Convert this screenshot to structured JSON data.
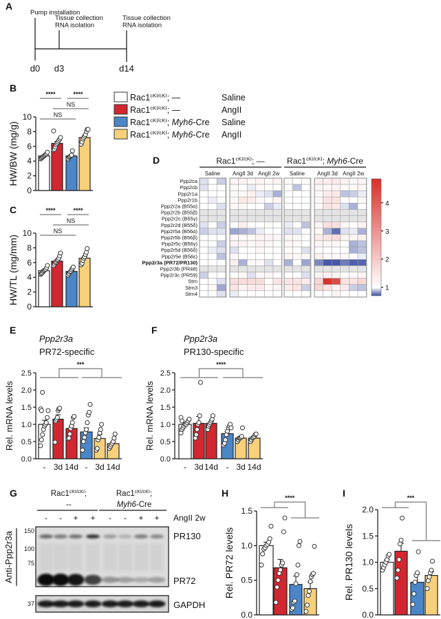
{
  "panel_labels": {
    "A": "A",
    "B": "B",
    "C": "C",
    "D": "D",
    "E": "E",
    "F": "F",
    "G": "G",
    "H": "H",
    "I": "I"
  },
  "timeline": {
    "events": [
      {
        "day": "d0",
        "lines": [
          "Pump installation"
        ]
      },
      {
        "day": "d3",
        "lines": [
          "Tissue collection",
          "RNA isolation"
        ]
      },
      {
        "day": "d14",
        "lines": [
          "Tissue collection",
          "RNA isolation"
        ]
      }
    ]
  },
  "legend": [
    {
      "gene": "Rac1",
      "sup": "cKI/cKI",
      "sep": "; ",
      "driver": "—",
      "driver_italic": "",
      "driver_suffix": "",
      "treatment": "Saline",
      "color": "#ffffff"
    },
    {
      "gene": "Rac1",
      "sup": "cKI/cKI",
      "sep": "; ",
      "driver": "—",
      "driver_italic": "",
      "driver_suffix": "",
      "treatment": "AngII",
      "color": "#d22630"
    },
    {
      "gene": "Rac1",
      "sup": "cKI/cKI",
      "sep": "; ",
      "driver": "",
      "driver_italic": "Myh6",
      "driver_suffix": "-Cre",
      "treatment": "Saline",
      "color": "#4a86c8"
    },
    {
      "gene": "Rac1",
      "sup": "cKI/cKI",
      "sep": "; ",
      "driver": "",
      "driver_italic": "Myh6",
      "driver_suffix": "-Cre",
      "treatment": "AngII",
      "color": "#f6d07a"
    }
  ],
  "chart_data": [
    {
      "panel": "B",
      "type": "bar",
      "ylabel": "HW/BW (mg/g)",
      "ylim": [
        0,
        10
      ],
      "yticks": [
        "0",
        "2",
        "4",
        "6",
        "8",
        "10"
      ],
      "colors": [
        "#ffffff",
        "#d22630",
        "#4a86c8",
        "#f6d07a"
      ],
      "values": [
        4.7,
        6.4,
        4.7,
        7.2
      ],
      "sem": [
        0.1,
        0.25,
        0.15,
        0.25
      ],
      "points": [
        [
          4.3,
          4.4,
          4.5,
          4.6,
          4.7,
          4.8,
          4.9,
          5.0,
          5.2
        ],
        [
          5.5,
          5.6,
          5.9,
          6.2,
          6.4,
          6.6,
          6.8,
          7.0,
          7.2,
          8.1
        ],
        [
          4.3,
          4.5,
          4.6,
          4.7,
          4.8,
          5.4
        ],
        [
          6.3,
          6.6,
          7.0,
          7.2,
          7.4,
          7.6,
          8.0,
          8.3,
          8.3
        ]
      ],
      "significance": [
        {
          "from": 0,
          "to": 1,
          "label": "****",
          "level": 2
        },
        {
          "from": 2,
          "to": 3,
          "label": "****",
          "level": 2
        },
        {
          "from": 1,
          "to": 3,
          "label": "NS",
          "level": 1
        },
        {
          "from": 0,
          "to": 2,
          "label": "NS",
          "level": 0
        }
      ]
    },
    {
      "panel": "C",
      "type": "bar",
      "ylabel": "HW/TL (mg/mm)",
      "ylim": [
        0,
        10
      ],
      "yticks": [
        "0",
        "2",
        "4",
        "6",
        "8",
        "10"
      ],
      "colors": [
        "#ffffff",
        "#d22630",
        "#4a86c8",
        "#f6d07a"
      ],
      "values": [
        4.9,
        6.2,
        4.8,
        6.6
      ],
      "sem": [
        0.12,
        0.15,
        0.13,
        0.25
      ],
      "points": [
        [
          4.4,
          4.5,
          4.6,
          4.8,
          4.9,
          5.0,
          5.1,
          5.3,
          5.6
        ],
        [
          5.6,
          5.8,
          6.0,
          6.1,
          6.3,
          6.4,
          6.6,
          6.9,
          7.3
        ],
        [
          4.3,
          4.5,
          4.7,
          4.8,
          5.0,
          5.2,
          5.4
        ],
        [
          5.7,
          5.9,
          6.3,
          6.6,
          6.8,
          7.1,
          7.4,
          7.9
        ]
      ],
      "significance": [
        {
          "from": 0,
          "to": 1,
          "label": "****",
          "level": 2
        },
        {
          "from": 2,
          "to": 3,
          "label": "****",
          "level": 2
        },
        {
          "from": 1,
          "to": 3,
          "label": "NS",
          "level": 1
        },
        {
          "from": 0,
          "to": 2,
          "label": "NS",
          "level": 0
        }
      ]
    },
    {
      "panel": "D",
      "type": "heatmap",
      "genotypes": [
        {
          "gene": "Rac1",
          "sup": "cKI/cKI",
          "sep": "; ",
          "driver": "—",
          "driver_italic": "",
          "driver_suffix": ""
        },
        {
          "gene": "Rac1",
          "sup": "cKI/cKI",
          "sep": "; ",
          "driver": "",
          "driver_italic": "Myh6",
          "driver_suffix": "-Cre"
        }
      ],
      "column_groups": [
        "Saline",
        "AngII 3d",
        "AngII 2w",
        "Saline",
        "AngII 3d",
        "AngII 2w"
      ],
      "replicates_per_group": 3,
      "rows": [
        {
          "label": "Ppp2ca",
          "values": [
            0.95,
            1,
            0.92,
            1.1,
            1.1,
            1.05,
            1.1,
            1.05,
            1.1,
            1.05,
            1,
            1,
            1.15,
            1.15,
            1.2,
            1.1,
            1.05,
            1.1
          ]
        },
        {
          "label": "Ppp2cb",
          "values": [
            0.95,
            1,
            1,
            1.05,
            1,
            0.97,
            1.05,
            1,
            1,
            1,
            0.9,
            1,
            1.1,
            1.05,
            1.1,
            1.05,
            1.05,
            1.1
          ]
        },
        {
          "label": "Ppp2r1a",
          "values": [
            1,
            1,
            1,
            1.05,
            1.05,
            1.15,
            0.97,
            0.95,
            0.87,
            1,
            1,
            1,
            1.05,
            1.2,
            1.25,
            0.9,
            0.92,
            0.97
          ]
        },
        {
          "label": "Ppp2r1b",
          "values": [
            1,
            0.97,
            1,
            1.05,
            1.25,
            1.2,
            1.05,
            1,
            1.1,
            1,
            1,
            1,
            1.05,
            1.3,
            1.3,
            1,
            1,
            1.05
          ]
        },
        {
          "label": "Ppp2r2a (B55α)",
          "values": [
            1,
            1,
            0.95,
            1.05,
            1.05,
            1,
            1,
            0.92,
            0.97,
            1,
            1,
            1,
            1.05,
            1.3,
            1.25,
            0.95,
            0.87,
            1
          ]
        },
        {
          "label": "Ppp2r2b (B55β)",
          "values": null
        },
        {
          "label": "Ppp2r2c (B55γ)",
          "values": null
        },
        {
          "label": "Ppp2r2d (B55δ)",
          "values": [
            0.95,
            1,
            0.92,
            1,
            1.15,
            1,
            1,
            1.05,
            1,
            0.97,
            1,
            0.9,
            1.1,
            1.4,
            1.35,
            1.05,
            1,
            1.1
          ]
        },
        {
          "label": "Ppp2r5a (B56α)",
          "values": [
            0.92,
            0.95,
            0.95,
            0.85,
            0.87,
            0.9,
            0.97,
            1,
            1,
            0.95,
            0.95,
            1,
            1.05,
            0.87,
            0.76,
            0.95,
            0.97,
            0.87
          ]
        },
        {
          "label": "Ppp2r5b (B56β)",
          "values": [
            1,
            1,
            1,
            1.05,
            1.05,
            1.05,
            1.1,
            1.1,
            1.05,
            1.1,
            1.05,
            1,
            1.2,
            1.3,
            1.4,
            1.1,
            1.1,
            1.15
          ]
        },
        {
          "label": "Ppp2r5c (B56γ)",
          "values": [
            1,
            1,
            0.92,
            1.1,
            1.1,
            1.05,
            1.1,
            1.05,
            1,
            1.05,
            1.05,
            1,
            1.1,
            1.1,
            1.05,
            1,
            0.87,
            0.9
          ]
        },
        {
          "label": "Ppp2r5d (B56δ)",
          "values": [
            1,
            0.97,
            0.95,
            0.95,
            1,
            1,
            1.05,
            1,
            1,
            1,
            1,
            0.95,
            1,
            1,
            1,
            1,
            0.87,
            0.9
          ]
        },
        {
          "label": "Ppp2r5e (B56ε)",
          "values": [
            1,
            1,
            0.9,
            1.05,
            1,
            1,
            1,
            1,
            1,
            1.1,
            1.05,
            1.05,
            1.15,
            1.05,
            1.05,
            1.05,
            1,
            0.97
          ]
        },
        {
          "label": "Ppp2r3a (PR72/PR130)",
          "bold": true,
          "values": [
            1,
            1,
            1,
            1.15,
            0.87,
            1.05,
            1.05,
            0.95,
            1,
            0.87,
            1,
            0.85,
            0.8,
            0.72,
            0.72,
            0.78,
            0.73,
            0.74
          ]
        },
        {
          "label": "Ppp2r3b (PR48)",
          "values": null
        },
        {
          "label": "Ppp2r3c (PR59)",
          "values": [
            0.92,
            1,
            1,
            1,
            1.05,
            0.95,
            1.05,
            1.1,
            1,
            1,
            1,
            0.95,
            1.1,
            1.15,
            1.1,
            1,
            1.05,
            1.1
          ]
        },
        {
          "label": "Strn",
          "values": [
            1,
            1,
            0.95,
            1.4,
            1.4,
            1.4,
            1.4,
            1,
            1.3,
            1.3,
            1.3,
            1.2,
            1.5,
            4.8,
            4.2,
            1.3,
            1.3,
            1.5
          ]
        },
        {
          "label": "Strn3",
          "values": [
            1,
            1.05,
            0.85,
            1.3,
            1.1,
            1.2,
            1.2,
            1.05,
            1.1,
            1.2,
            1.3,
            0.92,
            1.5,
            1.3,
            1.1,
            1.2,
            0.92,
            0.9
          ]
        },
        {
          "label": "Strn4",
          "values": [
            1,
            1,
            0.95,
            0.97,
            1,
            1,
            1,
            1,
            1,
            1,
            1,
            1,
            1,
            1,
            1.1,
            1,
            1,
            1
          ]
        }
      ],
      "colorbar": {
        "range": [
          0.7,
          4.85
        ],
        "ticks": [
          "1",
          "2",
          "3",
          "4"
        ],
        "low_color": "#3a4ca0",
        "mid_color": "#ffffff",
        "high_color": "#d7302a",
        "missing_color": "#e4e4e4"
      }
    },
    {
      "panel": "E",
      "type": "bar",
      "title": [
        "Ppp2r3a",
        "PR72-specific"
      ],
      "ylabel": "Rel. mRNA levels",
      "ylim": [
        0,
        2.5
      ],
      "yticks": [
        "0.0",
        "0.5",
        "1.0",
        "1.5",
        "2.0",
        "2.5"
      ],
      "xticklabels": [
        "-",
        "3d",
        "14d",
        "-",
        "3d",
        "14d"
      ],
      "colors": [
        "#ffffff",
        "#d22630",
        "#d22630",
        "#4a86c8",
        "#f6d07a",
        "#f6d07a"
      ],
      "values": [
        1.0,
        1.15,
        0.88,
        0.78,
        0.59,
        0.44
      ],
      "sem": [
        0.12,
        0.13,
        0.08,
        0.12,
        0.11,
        0.05
      ],
      "points": [
        [
          0.38,
          0.55,
          0.7,
          0.85,
          0.95,
          1.0,
          1.05,
          1.2,
          1.4,
          1.45,
          1.4,
          1.93
        ],
        [
          0.48,
          1.1,
          1.15,
          1.2,
          1.4,
          1.45,
          1.47
        ],
        [
          0.58,
          0.6,
          0.72,
          0.88,
          0.95,
          1.05,
          1.2,
          1.23
        ],
        [
          0.25,
          0.5,
          0.62,
          0.75,
          0.85,
          1.05,
          1.27,
          1.35,
          1.58
        ],
        [
          0.25,
          0.3,
          0.55,
          0.62,
          0.75,
          0.85,
          1.0
        ],
        [
          0.3,
          0.35,
          0.4,
          0.45,
          0.5,
          0.6,
          0.72
        ]
      ],
      "significance": [
        {
          "left": [
            0,
            1,
            2
          ],
          "right": [
            3,
            4,
            5
          ],
          "label": "***"
        }
      ]
    },
    {
      "panel": "F",
      "type": "bar",
      "title": [
        "Ppp2r3a",
        "PR130-specific"
      ],
      "ylabel": "Rel. mRNA levels",
      "ylim": [
        0,
        2.5
      ],
      "yticks": [
        "0.0",
        "0.5",
        "1.0",
        "1.5",
        "2.0",
        "2.5"
      ],
      "xticklabels": [
        "-",
        "3d",
        "14d",
        "-",
        "3d",
        "14d"
      ],
      "colors": [
        "#ffffff",
        "#d22630",
        "#d22630",
        "#4a86c8",
        "#f6d07a",
        "#f6d07a"
      ],
      "values": [
        1.0,
        1.03,
        1.03,
        0.73,
        0.6,
        0.6
      ],
      "sem": [
        0.04,
        0.2,
        0.05,
        0.07,
        0.04,
        0.03
      ],
      "points": [
        [
          0.75,
          0.85,
          0.9,
          0.95,
          1.0,
          1.0,
          1.05,
          1.1,
          1.15,
          1.2,
          1.1
        ],
        [
          0.6,
          0.7,
          0.85,
          1.0,
          1.05,
          1.25,
          2.22
        ],
        [
          0.85,
          0.95,
          1.0,
          1.05,
          1.1,
          1.15,
          1.25
        ],
        [
          0.4,
          0.45,
          0.55,
          0.7,
          0.8,
          0.9,
          0.95,
          1.0,
          0.9
        ],
        [
          0.5,
          0.55,
          0.6,
          0.6,
          0.62,
          0.65,
          0.9
        ],
        [
          0.5,
          0.55,
          0.6,
          0.62,
          0.65,
          0.7,
          0.72
        ]
      ],
      "significance": [
        {
          "left": [
            0,
            1,
            2
          ],
          "right": [
            3,
            4,
            5
          ],
          "label": "****"
        }
      ]
    },
    {
      "panel": "H",
      "type": "bar",
      "ylabel": "Rel. PR72 levels",
      "ylim": [
        0,
        1.5
      ],
      "yticks": [
        "0.0",
        "0.5",
        "1.0",
        "1.5"
      ],
      "colors": [
        "#ffffff",
        "#d22630",
        "#4a86c8",
        "#f6d07a"
      ],
      "values": [
        1.0,
        0.68,
        0.44,
        0.38
      ],
      "sem": [
        0.05,
        0.12,
        0.12,
        0.09
      ],
      "points": [
        [
          0.72,
          0.88,
          0.95,
          0.97,
          1.0,
          1.02,
          1.05,
          1.1,
          1.28
        ],
        [
          0.18,
          0.4,
          0.5,
          0.6,
          0.65,
          0.72,
          0.75,
          1.2,
          1.4
        ],
        [
          0.08,
          0.1,
          0.18,
          0.2,
          0.45,
          0.58,
          0.72,
          1.0,
          1.06
        ],
        [
          0.05,
          0.14,
          0.28,
          0.34,
          0.48,
          0.55,
          0.58,
          0.6,
          0.99
        ]
      ],
      "significance": [
        {
          "left": [
            0,
            1
          ],
          "right": [
            2,
            3
          ],
          "label": "****"
        }
      ]
    },
    {
      "panel": "I",
      "type": "bar",
      "ylabel": "Rel. PR130 levels",
      "ylim": [
        0,
        2.0
      ],
      "yticks": [
        "0.0",
        "0.5",
        "1.0",
        "1.5",
        "2.0"
      ],
      "colors": [
        "#ffffff",
        "#d22630",
        "#4a86c8",
        "#f6d07a"
      ],
      "values": [
        1.0,
        1.21,
        0.62,
        0.75
      ],
      "sem": [
        0.05,
        0.15,
        0.15,
        0.07
      ],
      "points": [
        [
          0.85,
          0.9,
          0.95,
          1.0,
          1.05,
          1.12,
          1.15
        ],
        [
          0.7,
          0.85,
          1.05,
          1.35,
          1.42,
          1.84
        ],
        [
          0.2,
          0.4,
          0.62,
          0.75,
          0.8,
          1.2
        ],
        [
          0.5,
          0.65,
          0.72,
          0.8,
          0.85,
          1.02
        ]
      ],
      "significance": [
        {
          "left": [
            0,
            1
          ],
          "right": [
            2,
            3
          ],
          "label": "***"
        }
      ]
    }
  ],
  "blot": {
    "genotypes": [
      {
        "gene": "Rac1",
        "sup": "cKI/cKI",
        "sep": ";",
        "line2": "--",
        "line2_italic": "",
        "line2_suffix": ""
      },
      {
        "gene": "Rac1",
        "sup": "cKI/cKI",
        "sep": ";",
        "line2": "",
        "line2_italic": "Myh6",
        "line2_suffix": "-Cre"
      }
    ],
    "treatment_label": "AngII 2w",
    "lanes": [
      "-",
      "-",
      "+",
      "+",
      "-",
      "-",
      "+",
      "+"
    ],
    "antibody": "Anti-Ppp2r3a",
    "mw_markers": [
      "150",
      "100",
      "75"
    ],
    "loading_marker": "37",
    "bands": [
      "PR130",
      "PR72"
    ],
    "loading_control": "GAPDH"
  }
}
